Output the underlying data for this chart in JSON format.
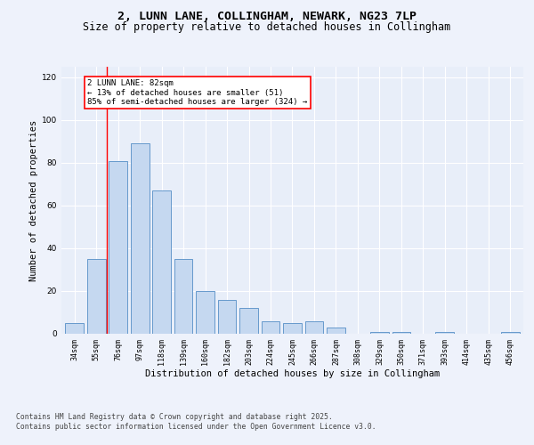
{
  "title_line1": "2, LUNN LANE, COLLINGHAM, NEWARK, NG23 7LP",
  "title_line2": "Size of property relative to detached houses in Collingham",
  "xlabel": "Distribution of detached houses by size in Collingham",
  "ylabel": "Number of detached properties",
  "categories": [
    "34sqm",
    "55sqm",
    "76sqm",
    "97sqm",
    "118sqm",
    "139sqm",
    "160sqm",
    "182sqm",
    "203sqm",
    "224sqm",
    "245sqm",
    "266sqm",
    "287sqm",
    "308sqm",
    "329sqm",
    "350sqm",
    "371sqm",
    "393sqm",
    "414sqm",
    "435sqm",
    "456sqm"
  ],
  "values": [
    5,
    35,
    81,
    89,
    67,
    35,
    20,
    16,
    12,
    6,
    5,
    6,
    3,
    0,
    1,
    1,
    0,
    1,
    0,
    0,
    1
  ],
  "bar_color": "#c5d8f0",
  "bar_edge_color": "#6699cc",
  "ylim": [
    0,
    125
  ],
  "yticks": [
    0,
    20,
    40,
    60,
    80,
    100,
    120
  ],
  "red_line_x": 1.5,
  "annotation_text": "2 LUNN LANE: 82sqm\n← 13% of detached houses are smaller (51)\n85% of semi-detached houses are larger (324) →",
  "footer_line1": "Contains HM Land Registry data © Crown copyright and database right 2025.",
  "footer_line2": "Contains public sector information licensed under the Open Government Licence v3.0.",
  "bg_color": "#eef2fb",
  "plot_bg_color": "#e8eef9",
  "grid_color": "#ffffff",
  "title_fontsize": 9.5,
  "subtitle_fontsize": 8.5,
  "tick_fontsize": 6,
  "label_fontsize": 7.5,
  "footer_fontsize": 5.8
}
